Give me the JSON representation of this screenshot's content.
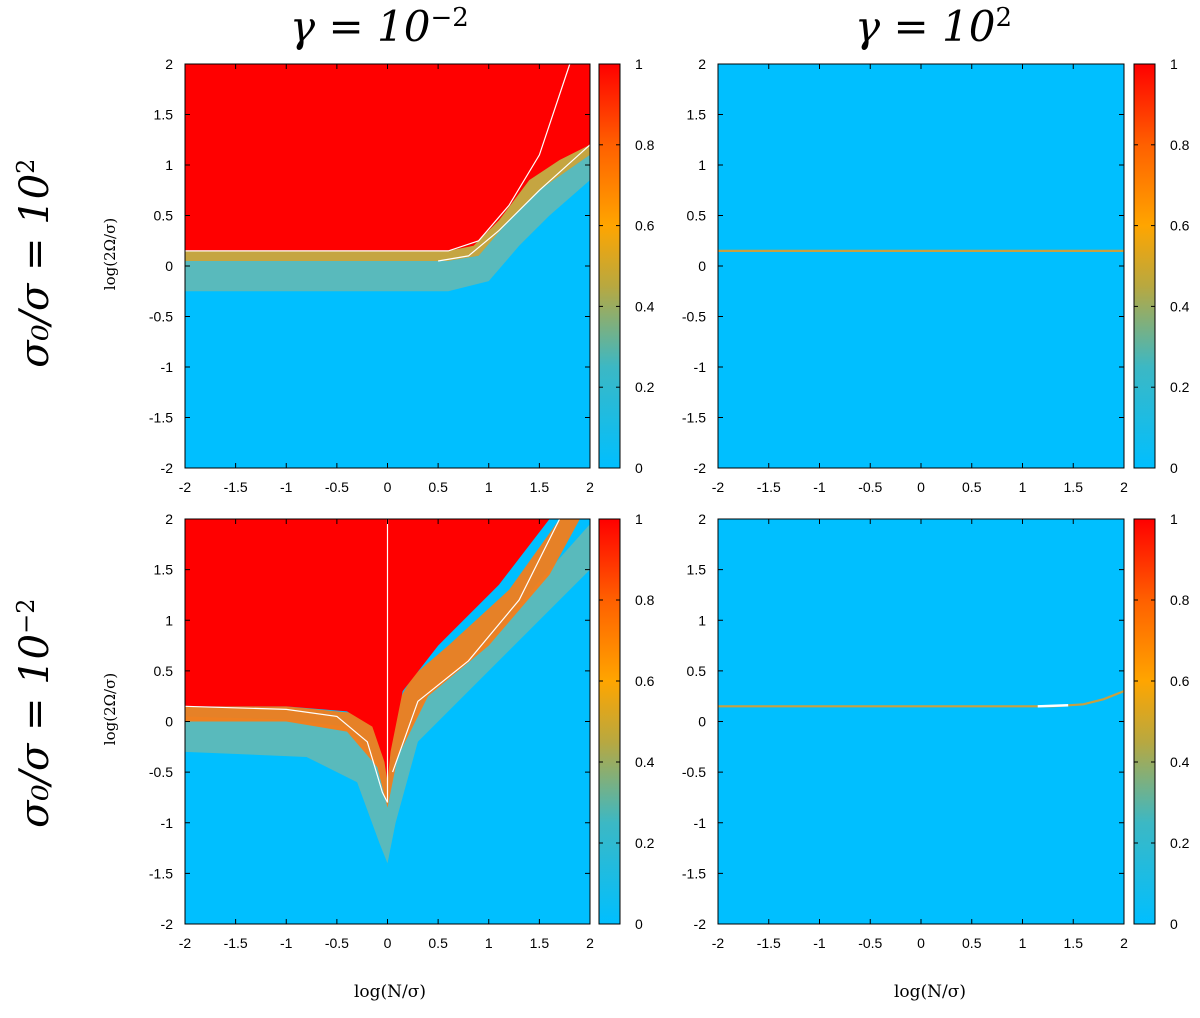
{
  "column_titles": [
    {
      "base": "γ = 10",
      "exp": "−2"
    },
    {
      "base": "γ = 10",
      "exp": "2"
    }
  ],
  "row_titles": [
    {
      "base": "σ₀/σ = 10",
      "exp": "2"
    },
    {
      "base": "σ₀/σ = 10",
      "exp": "−2"
    }
  ],
  "y_axis_label": "log(2Ω/σ)",
  "x_axis_label": "log(N/σ)",
  "chart_data": [
    {
      "type": "heatmap",
      "name": "gamma-1e-2-sigma-1e2",
      "xlim": [
        -2,
        2
      ],
      "ylim": [
        -2,
        2
      ],
      "clim": [
        0,
        1
      ],
      "xticks": [
        "-2",
        "-1.5",
        "-1",
        "-0.5",
        "0",
        "0.5",
        "1",
        "1.5",
        "2"
      ],
      "yticks": [
        "2",
        "1.5",
        "1",
        "0.5",
        "0",
        "-0.5",
        "-1",
        "-1.5",
        "-2"
      ],
      "cbticks": [
        "1",
        "0.8",
        "0.6",
        "0.4",
        "0.2",
        "0"
      ],
      "boundary": "flat at log(2Ω/σ)≈0.05 for x<1, rising with slope ~1.3 beyond x≈1",
      "contour_curves": [
        [
          [
            -2,
            0.15
          ],
          [
            0.6,
            0.15
          ],
          [
            0.9,
            0.25
          ],
          [
            1.2,
            0.6
          ],
          [
            1.5,
            1.1
          ],
          [
            1.8,
            2.0
          ]
        ],
        [
          [
            0.5,
            0.05
          ],
          [
            0.8,
            0.1
          ],
          [
            1.1,
            0.35
          ],
          [
            1.5,
            0.75
          ],
          [
            2,
            1.2
          ]
        ]
      ]
    },
    {
      "type": "heatmap",
      "name": "gamma-1e2-sigma-1e2",
      "xlim": [
        -2,
        2
      ],
      "ylim": [
        -2,
        2
      ],
      "clim": [
        0,
        1
      ],
      "xticks": [
        "-2",
        "-1.5",
        "-1",
        "-0.5",
        "0",
        "0.5",
        "1",
        "1.5",
        "2"
      ],
      "yticks": [
        "2",
        "1.5",
        "1",
        "0.5",
        "0",
        "-0.5",
        "-1",
        "-1.5",
        "-2"
      ],
      "cbticks": [
        "1",
        "0.8",
        "0.6",
        "0.4",
        "0.2",
        "0"
      ],
      "boundary": "uniform low value with a thin line at log(2Ω/σ)≈0.15",
      "contour_curves": [
        [
          [
            -2,
            0.15
          ],
          [
            2,
            0.15
          ]
        ]
      ]
    },
    {
      "type": "heatmap",
      "name": "gamma-1e-2-sigma-1e-2",
      "xlim": [
        -2,
        2
      ],
      "ylim": [
        -2,
        2
      ],
      "clim": [
        0,
        1
      ],
      "xticks": [
        "-2",
        "-1.5",
        "-1",
        "-0.5",
        "0",
        "0.5",
        "1",
        "1.5",
        "2"
      ],
      "yticks": [
        "2",
        "1.5",
        "1",
        "0.5",
        "0",
        "-0.5",
        "-1",
        "-1.5",
        "-2"
      ],
      "cbticks": [
        "1",
        "0.8",
        "0.6",
        "0.4",
        "0.2",
        "0"
      ],
      "boundary": "flat at log(2Ω/σ)≈0.05, cusp dipping to ≈-0.8 at x=0, rising to the right",
      "contour_curves": [
        [
          [
            -2,
            0.15
          ],
          [
            -1,
            0.12
          ],
          [
            -0.5,
            0.05
          ],
          [
            -0.2,
            -0.2
          ],
          [
            -0.05,
            -0.7
          ],
          [
            0,
            -0.8
          ]
        ],
        [
          [
            0.05,
            -0.5
          ],
          [
            0.3,
            0.2
          ],
          [
            0.8,
            0.6
          ],
          [
            1.3,
            1.2
          ],
          [
            1.7,
            2.0
          ]
        ],
        [
          [
            0,
            -0.8
          ],
          [
            0,
            2.0
          ]
        ]
      ]
    },
    {
      "type": "heatmap",
      "name": "gamma-1e2-sigma-1e-2",
      "xlim": [
        -2,
        2
      ],
      "ylim": [
        -2,
        2
      ],
      "clim": [
        0,
        1
      ],
      "xticks": [
        "-2",
        "-1.5",
        "-1",
        "-0.5",
        "0",
        "0.5",
        "1",
        "1.5",
        "2"
      ],
      "yticks": [
        "2",
        "1.5",
        "1",
        "0.5",
        "0",
        "-0.5",
        "-1",
        "-1.5",
        "-2"
      ],
      "cbticks": [
        "1",
        "0.8",
        "0.6",
        "0.4",
        "0.2",
        "0"
      ],
      "boundary": "uniform low value with a thin line at log(2Ω/σ)≈0.15 curving up beyond x≈1.5",
      "contour_curves": [
        [
          [
            -2,
            0.15
          ],
          [
            1.3,
            0.15
          ],
          [
            1.6,
            0.17
          ],
          [
            1.8,
            0.22
          ],
          [
            2,
            0.3
          ]
        ]
      ]
    }
  ]
}
